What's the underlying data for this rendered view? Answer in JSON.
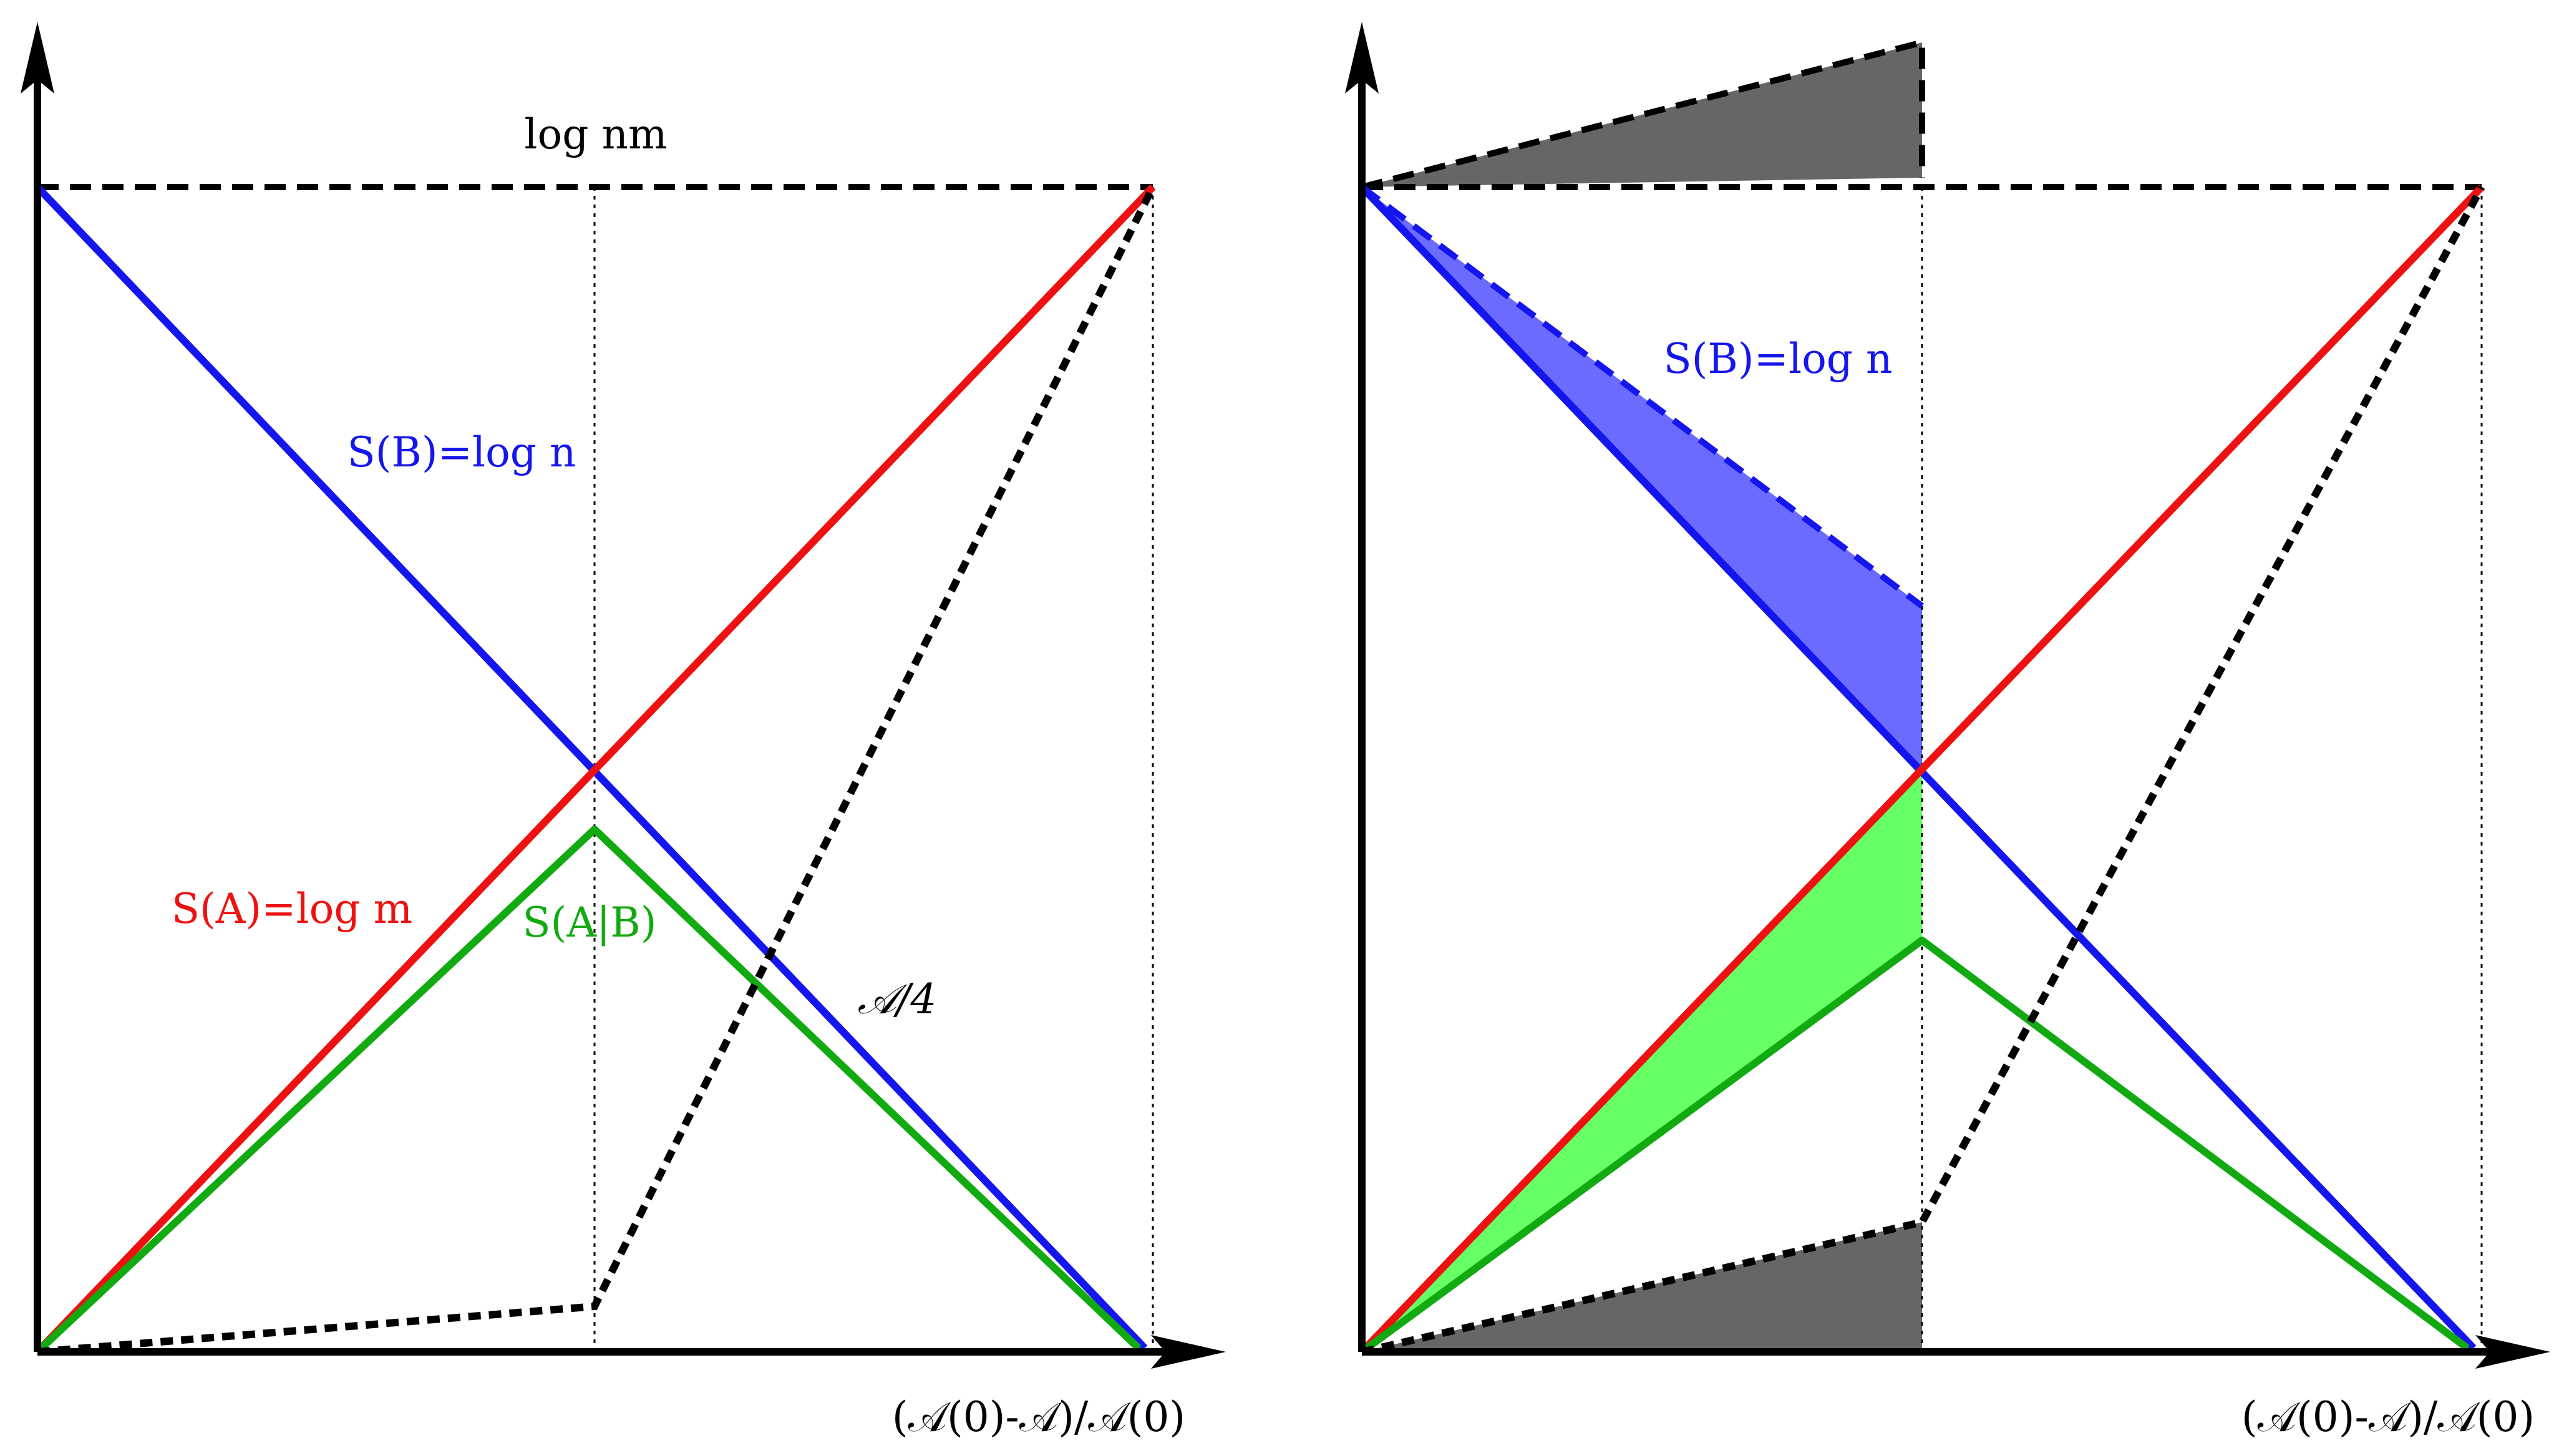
{
  "panels": [
    {
      "id": "left",
      "x_axis_label": "(𝒜(0)-𝒜)/𝒜(0)",
      "top_label": "log nm",
      "label_sb": "S(B)=log n",
      "label_sa": "S(A)=log m",
      "label_sab": "S(A|B)",
      "label_area": "𝒜/4"
    },
    {
      "id": "right",
      "x_axis_label": "(𝒜(0)-𝒜)/𝒜(0)",
      "label_sb": "S(B)=log n"
    }
  ],
  "colors": {
    "axis": "#000000",
    "sa": "#ee1111",
    "sb": "#1515ee",
    "sab": "#11aa11",
    "area_curve": "#000000",
    "blue_fill": "#6b6bff",
    "green_fill": "#66ff66",
    "gray_fill": "#666666"
  }
}
